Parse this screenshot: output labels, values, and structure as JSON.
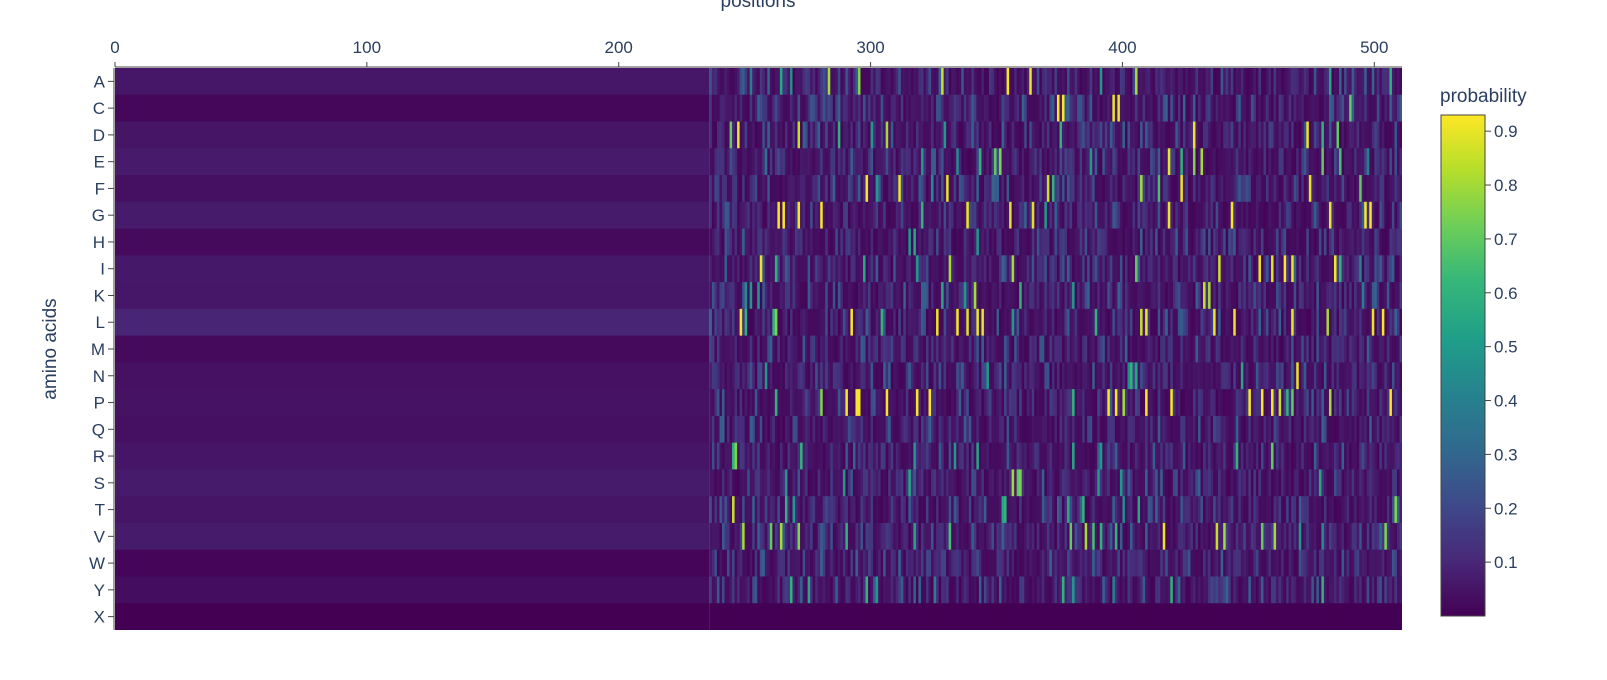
{
  "chart_data": {
    "type": "heatmap",
    "title": "",
    "xlabel": "positions",
    "ylabel": "amino acids",
    "colorbar_title": "probability",
    "x_range": [
      0,
      511
    ],
    "x_ticks": [
      0,
      100,
      200,
      300,
      400,
      500
    ],
    "x_tick_labels": [
      "0",
      "100",
      "200",
      "300",
      "400",
      "500"
    ],
    "x_axis_side": "top",
    "categories": [
      "A",
      "C",
      "D",
      "E",
      "F",
      "G",
      "H",
      "I",
      "K",
      "L",
      "M",
      "N",
      "P",
      "Q",
      "R",
      "S",
      "T",
      "V",
      "W",
      "Y",
      "X"
    ],
    "colorscale": "viridis",
    "colorbar_ticks": [
      0.1,
      0.2,
      0.3,
      0.4,
      0.5,
      0.6,
      0.7,
      0.8,
      0.9
    ],
    "colorbar_tick_labels": [
      "0.1",
      "0.2",
      "0.3",
      "0.4",
      "0.5",
      "0.6",
      "0.7",
      "0.8",
      "0.9"
    ],
    "zlim": [
      0.0,
      0.93
    ],
    "uniform_region": {
      "x_start": 0,
      "x_end": 236,
      "values": [
        0.058,
        0.015,
        0.052,
        0.066,
        0.04,
        0.07,
        0.024,
        0.06,
        0.058,
        0.096,
        0.024,
        0.042,
        0.046,
        0.04,
        0.054,
        0.07,
        0.052,
        0.07,
        0.014,
        0.032,
        0.001
      ]
    },
    "variable_region": {
      "x_start": 236,
      "x_end": 511,
      "background_value": 0.02,
      "note": "high-probability positions",
      "highlights": {
        "A": [
          [
            252,
            0.4
          ],
          [
            259,
            0.3
          ],
          [
            264,
            0.55
          ],
          [
            268,
            0.45
          ],
          [
            283,
            0.8
          ],
          [
            295,
            0.75
          ],
          [
            328,
            0.85
          ],
          [
            354,
            0.92
          ],
          [
            363,
            0.9
          ],
          [
            391,
            0.5
          ],
          [
            405,
            0.8
          ],
          [
            482,
            0.55
          ],
          [
            499,
            0.3
          ],
          [
            506,
            0.6
          ]
        ],
        "C": [
          [
            374,
            0.92
          ],
          [
            376,
            0.92
          ],
          [
            396,
            0.9
          ],
          [
            398,
            0.9
          ],
          [
            490,
            0.7
          ]
        ],
        "D": [
          [
            244,
            0.7
          ],
          [
            247,
            0.9
          ],
          [
            271,
            0.85
          ],
          [
            287,
            0.6
          ],
          [
            300,
            0.5
          ],
          [
            306,
            0.8
          ],
          [
            329,
            0.5
          ],
          [
            375,
            0.6
          ],
          [
            400,
            0.3
          ],
          [
            428,
            0.9
          ],
          [
            473,
            0.9
          ],
          [
            479,
            0.6
          ],
          [
            485,
            0.7
          ]
        ],
        "E": [
          [
            258,
            0.35
          ],
          [
            320,
            0.5
          ],
          [
            334,
            0.45
          ],
          [
            343,
            0.6
          ],
          [
            349,
            0.7
          ],
          [
            351,
            0.75
          ],
          [
            387,
            0.5
          ],
          [
            418,
            0.9
          ],
          [
            423,
            0.6
          ],
          [
            428,
            0.75
          ],
          [
            431,
            0.8
          ],
          [
            479,
            0.7
          ],
          [
            486,
            0.65
          ],
          [
            497,
            0.4
          ]
        ],
        "F": [
          [
            298,
            0.92
          ],
          [
            302,
            0.5
          ],
          [
            311,
            0.9
          ],
          [
            324,
            0.45
          ],
          [
            330,
            0.9
          ],
          [
            370,
            0.85
          ],
          [
            372,
            0.6
          ],
          [
            407,
            0.8
          ],
          [
            414,
            0.65
          ],
          [
            423,
            0.9
          ],
          [
            474,
            0.9
          ],
          [
            494,
            0.7
          ]
        ],
        "G": [
          [
            263,
            0.92
          ],
          [
            265,
            0.92
          ],
          [
            271,
            0.92
          ],
          [
            280,
            0.92
          ],
          [
            320,
            0.6
          ],
          [
            338,
            0.9
          ],
          [
            355,
            0.88
          ],
          [
            364,
            0.88
          ],
          [
            369,
            0.5
          ],
          [
            418,
            0.9
          ],
          [
            443,
            0.92
          ],
          [
            482,
            0.9
          ],
          [
            496,
            0.92
          ],
          [
            498,
            0.92
          ]
        ],
        "H": [
          [
            315,
            0.5
          ],
          [
            317,
            0.55
          ],
          [
            342,
            0.5
          ]
        ],
        "I": [
          [
            256,
            0.9
          ],
          [
            262,
            0.6
          ],
          [
            297,
            0.55
          ],
          [
            318,
            0.5
          ],
          [
            331,
            0.8
          ],
          [
            356,
            0.8
          ],
          [
            405,
            0.7
          ],
          [
            438,
            0.85
          ],
          [
            454,
            0.9
          ],
          [
            459,
            0.88
          ],
          [
            464,
            0.92
          ],
          [
            467,
            0.9
          ],
          [
            484,
            0.92
          ],
          [
            486,
            0.6
          ],
          [
            494,
            0.4
          ]
        ],
        "K": [
          [
            250,
            0.45
          ],
          [
            252,
            0.5
          ],
          [
            255,
            0.5
          ],
          [
            328,
            0.55
          ],
          [
            337,
            0.5
          ],
          [
            341,
            0.8
          ],
          [
            359,
            0.6
          ],
          [
            380,
            0.5
          ],
          [
            398,
            0.3
          ],
          [
            432,
            0.85
          ],
          [
            434,
            0.8
          ],
          [
            495,
            0.4
          ]
        ],
        "L": [
          [
            248,
            0.92
          ],
          [
            250,
            0.6
          ],
          [
            261,
            0.6
          ],
          [
            262,
            0.75
          ],
          [
            292,
            0.92
          ],
          [
            304,
            0.6
          ],
          [
            326,
            0.9
          ],
          [
            334,
            0.92
          ],
          [
            338,
            0.88
          ],
          [
            342,
            0.9
          ],
          [
            344,
            0.9
          ],
          [
            356,
            0.5
          ],
          [
            389,
            0.6
          ],
          [
            407,
            0.85
          ],
          [
            409,
            0.9
          ],
          [
            436,
            0.9
          ],
          [
            444,
            0.9
          ],
          [
            467,
            0.9
          ],
          [
            481,
            0.8
          ],
          [
            499,
            0.9
          ],
          [
            503,
            0.92
          ]
        ],
        "M": [
          [
            401,
            0.3
          ]
        ],
        "N": [
          [
            258,
            0.5
          ],
          [
            346,
            0.5
          ],
          [
            402,
            0.45
          ],
          [
            403,
            0.6
          ],
          [
            405,
            0.55
          ],
          [
            447,
            0.55
          ],
          [
            469,
            0.9
          ]
        ],
        "P": [
          [
            262,
            0.6
          ],
          [
            280,
            0.75
          ],
          [
            290,
            0.92
          ],
          [
            294,
            0.92
          ],
          [
            295,
            0.92
          ],
          [
            306,
            0.92
          ],
          [
            318,
            0.92
          ],
          [
            323,
            0.92
          ],
          [
            380,
            0.6
          ],
          [
            394,
            0.92
          ],
          [
            397,
            0.92
          ],
          [
            400,
            0.8
          ],
          [
            409,
            0.92
          ],
          [
            419,
            0.92
          ],
          [
            450,
            0.92
          ],
          [
            455,
            0.92
          ],
          [
            459,
            0.92
          ],
          [
            462,
            0.85
          ],
          [
            465,
            0.6
          ],
          [
            467,
            0.7
          ],
          [
            482,
            0.8
          ],
          [
            506,
            0.92
          ]
        ],
        "Q": [],
        "R": [
          [
            245,
            0.6
          ],
          [
            246,
            0.75
          ],
          [
            272,
            0.6
          ],
          [
            317,
            0.5
          ],
          [
            333,
            0.5
          ],
          [
            342,
            0.55
          ],
          [
            380,
            0.55
          ],
          [
            391,
            0.5
          ],
          [
            445,
            0.6
          ],
          [
            459,
            0.7
          ]
        ],
        "S": [
          [
            266,
            0.5
          ],
          [
            289,
            0.5
          ],
          [
            315,
            0.55
          ],
          [
            356,
            0.8
          ],
          [
            358,
            0.7
          ],
          [
            359,
            0.75
          ],
          [
            390,
            0.5
          ],
          [
            399,
            0.5
          ],
          [
            409,
            0.3
          ],
          [
            478,
            0.55
          ]
        ],
        "T": [
          [
            245,
            0.85
          ],
          [
            266,
            0.6
          ],
          [
            269,
            0.5
          ],
          [
            352,
            0.55
          ],
          [
            353,
            0.6
          ],
          [
            378,
            0.55
          ],
          [
            384,
            0.6
          ],
          [
            400,
            0.45
          ],
          [
            406,
            0.55
          ],
          [
            508,
            0.75
          ]
        ],
        "V": [
          [
            249,
            0.8
          ],
          [
            260,
            0.7
          ],
          [
            264,
            0.8
          ],
          [
            271,
            0.75
          ],
          [
            290,
            0.6
          ],
          [
            317,
            0.55
          ],
          [
            331,
            0.65
          ],
          [
            379,
            0.7
          ],
          [
            385,
            0.8
          ],
          [
            388,
            0.65
          ],
          [
            391,
            0.6
          ],
          [
            397,
            0.6
          ],
          [
            416,
            0.9
          ],
          [
            437,
            0.85
          ],
          [
            440,
            0.8
          ],
          [
            455,
            0.7
          ],
          [
            460,
            0.8
          ],
          [
            470,
            0.5
          ],
          [
            479,
            0.45
          ],
          [
            504,
            0.75
          ]
        ],
        "W": [
          [
            311,
            0.3
          ]
        ],
        "Y": [
          [
            268,
            0.6
          ],
          [
            275,
            0.55
          ],
          [
            298,
            0.6
          ],
          [
            302,
            0.5
          ],
          [
            325,
            0.4
          ],
          [
            376,
            0.6
          ],
          [
            380,
            0.5
          ],
          [
            396,
            0.4
          ],
          [
            419,
            0.6
          ],
          [
            479,
            0.6
          ]
        ],
        "X": []
      }
    }
  }
}
